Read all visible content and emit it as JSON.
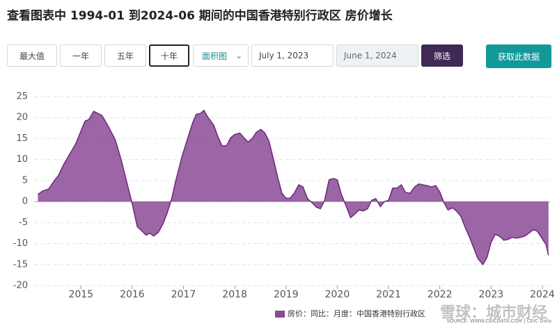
{
  "header": {
    "title": "查看图表中 1994-01 到2024-06 期间的中国香港特别行政区 房价增长"
  },
  "controls": {
    "ranges": [
      "最大值",
      "一年",
      "五年",
      "十年"
    ],
    "chart_type": "面积图",
    "start_date": "July 1, 2023",
    "end_date": "June 1, 2024",
    "filter": "筛选",
    "download": "获取此数据"
  },
  "chart_data": {
    "type": "area",
    "x": [
      2014.16,
      2014.25,
      2014.37,
      2014.48,
      2014.56,
      2014.67,
      2014.9,
      2015.08,
      2015.15,
      2015.25,
      2015.41,
      2015.53,
      2015.67,
      2015.79,
      2015.89,
      2015.99,
      2016.1,
      2016.19,
      2016.27,
      2016.34,
      2016.42,
      2016.51,
      2016.6,
      2016.68,
      2016.77,
      2016.84,
      2016.97,
      2017.08,
      2017.18,
      2017.25,
      2017.33,
      2017.4,
      2017.47,
      2017.59,
      2017.67,
      2017.75,
      2017.84,
      2017.92,
      2018.0,
      2018.1,
      2018.18,
      2018.26,
      2018.34,
      2018.42,
      2018.51,
      2018.59,
      2018.67,
      2018.75,
      2018.84,
      2018.92,
      2019.0,
      2019.08,
      2019.16,
      2019.25,
      2019.33,
      2019.42,
      2019.51,
      2019.59,
      2019.67,
      2019.75,
      2019.84,
      2019.92,
      2020.0,
      2020.08,
      2020.16,
      2020.26,
      2020.34,
      2020.42,
      2020.51,
      2020.59,
      2020.67,
      2020.75,
      2020.84,
      2020.92,
      2021.0,
      2021.08,
      2021.16,
      2021.25,
      2021.33,
      2021.42,
      2021.51,
      2021.59,
      2021.67,
      2021.75,
      2021.84,
      2021.92,
      2022.0,
      2022.08,
      2022.16,
      2022.25,
      2022.33,
      2022.41,
      2022.49,
      2022.58,
      2022.66,
      2022.74,
      2022.84,
      2022.92,
      2023.0,
      2023.08,
      2023.16,
      2023.25,
      2023.33,
      2023.41,
      2023.49,
      2023.58,
      2023.66,
      2023.74,
      2023.82,
      2023.9,
      2023.99,
      2024.07,
      2024.12
    ],
    "series": [
      {
        "name": "房价：同比：月度：中国香港特别行政区",
        "color": "#8b4a96",
        "values": [
          1.7,
          2.5,
          3,
          5,
          6.2,
          9,
          13.8,
          19.2,
          19.5,
          21.5,
          20.5,
          18,
          14.7,
          9.7,
          4.8,
          0,
          -6,
          -7,
          -8,
          -7.5,
          -8.2,
          -7.3,
          -5.3,
          -2.8,
          0.7,
          4.5,
          10.7,
          15,
          18.8,
          20.8,
          21,
          21.7,
          20.2,
          18.2,
          15.5,
          13.3,
          13.3,
          15.2,
          16,
          16.3,
          15.2,
          14.2,
          15,
          16.5,
          17.2,
          16.3,
          14.3,
          10.3,
          5.7,
          2,
          0.8,
          0.8,
          2,
          4,
          3.5,
          0.7,
          -0.3,
          -1.3,
          -1.7,
          0.2,
          5.2,
          5.5,
          5.2,
          1.7,
          -0.7,
          -3.8,
          -3,
          -2,
          -2.2,
          -1.7,
          0.3,
          0.7,
          -1.2,
          0,
          0.3,
          3.2,
          3.2,
          4,
          2.2,
          2,
          3.5,
          4.2,
          4,
          3.8,
          3.5,
          3.8,
          2.3,
          -0.2,
          -2,
          -1.5,
          -2.3,
          -3.5,
          -6,
          -8.5,
          -11,
          -13.5,
          -15,
          -13.3,
          -9.7,
          -7.8,
          -8.2,
          -9.2,
          -9,
          -8.5,
          -8.7,
          -8.5,
          -8.2,
          -7.5,
          -6.7,
          -7,
          -8.7,
          -10.2,
          -12.8
        ]
      }
    ],
    "xlim": [
      2014.1,
      2024.15
    ],
    "xticks": [
      2015,
      2016,
      2017,
      2018,
      2019,
      2020,
      2021,
      2022,
      2023,
      2024
    ],
    "ylim": [
      -20,
      25
    ],
    "yticks": [
      -20,
      -15,
      -10,
      -5,
      0,
      5,
      10,
      15,
      20,
      25
    ],
    "grid": true,
    "source": "SOURCE: WWW.CEICDATA.COM | CEIC Data"
  },
  "watermark": "雪球：城市财经"
}
